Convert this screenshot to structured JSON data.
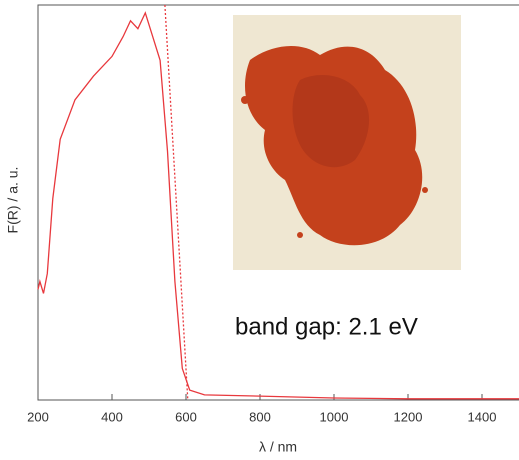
{
  "chart_data": {
    "type": "line",
    "x_label": "λ / nm",
    "y_label": "F(R) / a. u.",
    "annotation": "band gap: 2.1 eV",
    "x": [
      200,
      205,
      215,
      225,
      240,
      260,
      300,
      350,
      400,
      430,
      450,
      470,
      490,
      510,
      530,
      550,
      570,
      590,
      610,
      650,
      800,
      1000,
      1200,
      1500
    ],
    "series": [
      {
        "color": "#e8383d",
        "values": [
          0.28,
          0.3,
          0.27,
          0.32,
          0.51,
          0.66,
          0.76,
          0.82,
          0.87,
          0.92,
          0.96,
          0.94,
          0.98,
          0.92,
          0.86,
          0.63,
          0.3,
          0.08,
          0.025,
          0.013,
          0.01,
          0.005,
          0.003,
          0.003
        ]
      }
    ],
    "tangent": {
      "color": "#e8383d",
      "x": [
        543,
        605
      ],
      "values": [
        1.0,
        0
      ]
    },
    "xlim": [
      200,
      1500
    ],
    "ylim": [
      0,
      1
    ],
    "xticks": [
      200,
      400,
      600,
      800,
      1000,
      1200,
      1400
    ]
  }
}
